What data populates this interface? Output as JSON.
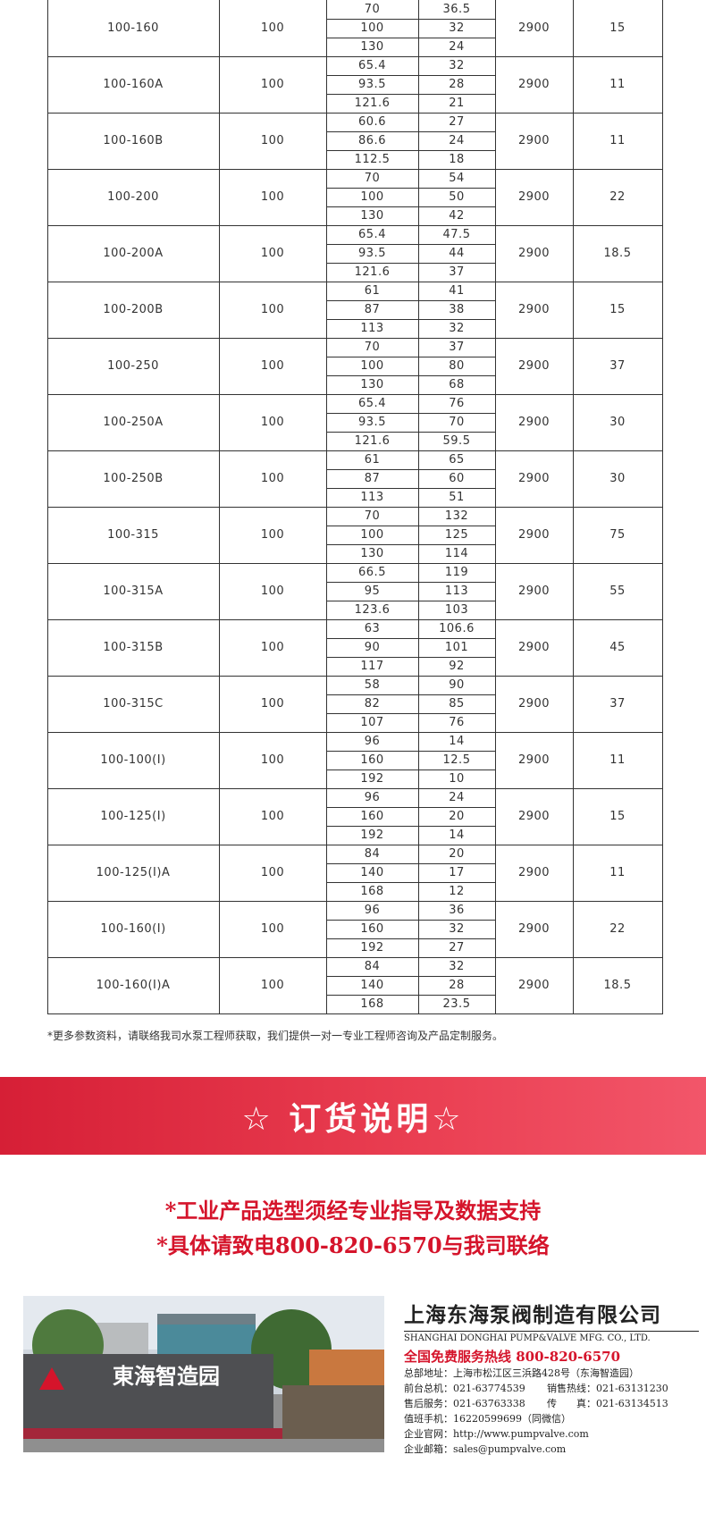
{
  "table": {
    "rows": [
      {
        "model": "100-160",
        "diameter": 100,
        "flow": [
          70,
          100,
          130
        ],
        "head": [
          36.5,
          32,
          24
        ],
        "speed": 2900,
        "power": 15
      },
      {
        "model": "100-160A",
        "diameter": 100,
        "flow": [
          65.4,
          93.5,
          121.6
        ],
        "head": [
          32,
          28,
          21
        ],
        "speed": 2900,
        "power": 11
      },
      {
        "model": "100-160B",
        "diameter": 100,
        "flow": [
          60.6,
          86.6,
          112.5
        ],
        "head": [
          27,
          24,
          18
        ],
        "speed": 2900,
        "power": 11
      },
      {
        "model": "100-200",
        "diameter": 100,
        "flow": [
          70,
          100,
          130
        ],
        "head": [
          54,
          50,
          42
        ],
        "speed": 2900,
        "power": 22
      },
      {
        "model": "100-200A",
        "diameter": 100,
        "flow": [
          65.4,
          93.5,
          121.6
        ],
        "head": [
          47.5,
          44,
          37
        ],
        "speed": 2900,
        "power": 18.5
      },
      {
        "model": "100-200B",
        "diameter": 100,
        "flow": [
          61,
          87,
          113
        ],
        "head": [
          41,
          38,
          32
        ],
        "speed": 2900,
        "power": 15
      },
      {
        "model": "100-250",
        "diameter": 100,
        "flow": [
          70,
          100,
          130
        ],
        "head": [
          37,
          80,
          68
        ],
        "speed": 2900,
        "power": 37
      },
      {
        "model": "100-250A",
        "diameter": 100,
        "flow": [
          65.4,
          93.5,
          121.6
        ],
        "head": [
          76,
          70,
          59.5
        ],
        "speed": 2900,
        "power": 30
      },
      {
        "model": "100-250B",
        "diameter": 100,
        "flow": [
          61,
          87,
          113
        ],
        "head": [
          65,
          60,
          51
        ],
        "speed": 2900,
        "power": 30
      },
      {
        "model": "100-315",
        "diameter": 100,
        "flow": [
          70,
          100,
          130
        ],
        "head": [
          132,
          125,
          114
        ],
        "speed": 2900,
        "power": 75
      },
      {
        "model": "100-315A",
        "diameter": 100,
        "flow": [
          66.5,
          95,
          123.6
        ],
        "head": [
          119,
          113,
          103
        ],
        "speed": 2900,
        "power": 55
      },
      {
        "model": "100-315B",
        "diameter": 100,
        "flow": [
          63,
          90,
          117
        ],
        "head": [
          106.6,
          101,
          92
        ],
        "speed": 2900,
        "power": 45
      },
      {
        "model": "100-315C",
        "diameter": 100,
        "flow": [
          58,
          82,
          107
        ],
        "head": [
          90,
          85,
          76
        ],
        "speed": 2900,
        "power": 37
      },
      {
        "model": "100-100(I)",
        "diameter": 100,
        "flow": [
          96,
          160,
          192
        ],
        "head": [
          14,
          12.5,
          10
        ],
        "speed": 2900,
        "power": 11
      },
      {
        "model": "100-125(I)",
        "diameter": 100,
        "flow": [
          96,
          160,
          192
        ],
        "head": [
          24,
          20,
          14
        ],
        "speed": 2900,
        "power": 15
      },
      {
        "model": "100-125(I)A",
        "diameter": 100,
        "flow": [
          84,
          140,
          168
        ],
        "head": [
          20,
          17,
          12
        ],
        "speed": 2900,
        "power": 11
      },
      {
        "model": "100-160(I)",
        "diameter": 100,
        "flow": [
          96,
          160,
          192
        ],
        "head": [
          36,
          32,
          27
        ],
        "speed": 2900,
        "power": 22
      },
      {
        "model": "100-160(I)A",
        "diameter": 100,
        "flow": [
          84,
          140,
          168
        ],
        "head": [
          32,
          28,
          23.5
        ],
        "speed": 2900,
        "power": 18.5
      }
    ]
  },
  "note": "*更多参数资料，请联络我司水泵工程师获取，我们提供一对一专业工程师咨询及产品定制服务。",
  "banner": {
    "title": "☆ 订货说明☆"
  },
  "order_lines": [
    "*工业产品选型须经专业指导及数据支持",
    "*具体请致电800-820-6570与我司联络"
  ],
  "photo": {
    "sign": "東海智造园"
  },
  "company": {
    "name_cn": "上海东海泵阀制造有限公司",
    "name_en": "SHANGHAI DONGHAI PUMP&VALVE MFG. CO., LTD.",
    "hotline": "全国免费服务热线  800-820-6570",
    "lines": [
      [
        "总部地址：上海市松江区三浜路428号（东海智造园）"
      ],
      [
        "前台总机：021-63774539",
        "销售热线：021-63131230"
      ],
      [
        "售后服务：021-63763338",
        "传　　真：021-63134513"
      ],
      [
        "值班手机：16220599699（同微信）"
      ],
      [
        "企业官网：http://www.pumpvalve.com"
      ],
      [
        "企业邮箱：sales@pumpvalve.com"
      ]
    ]
  }
}
